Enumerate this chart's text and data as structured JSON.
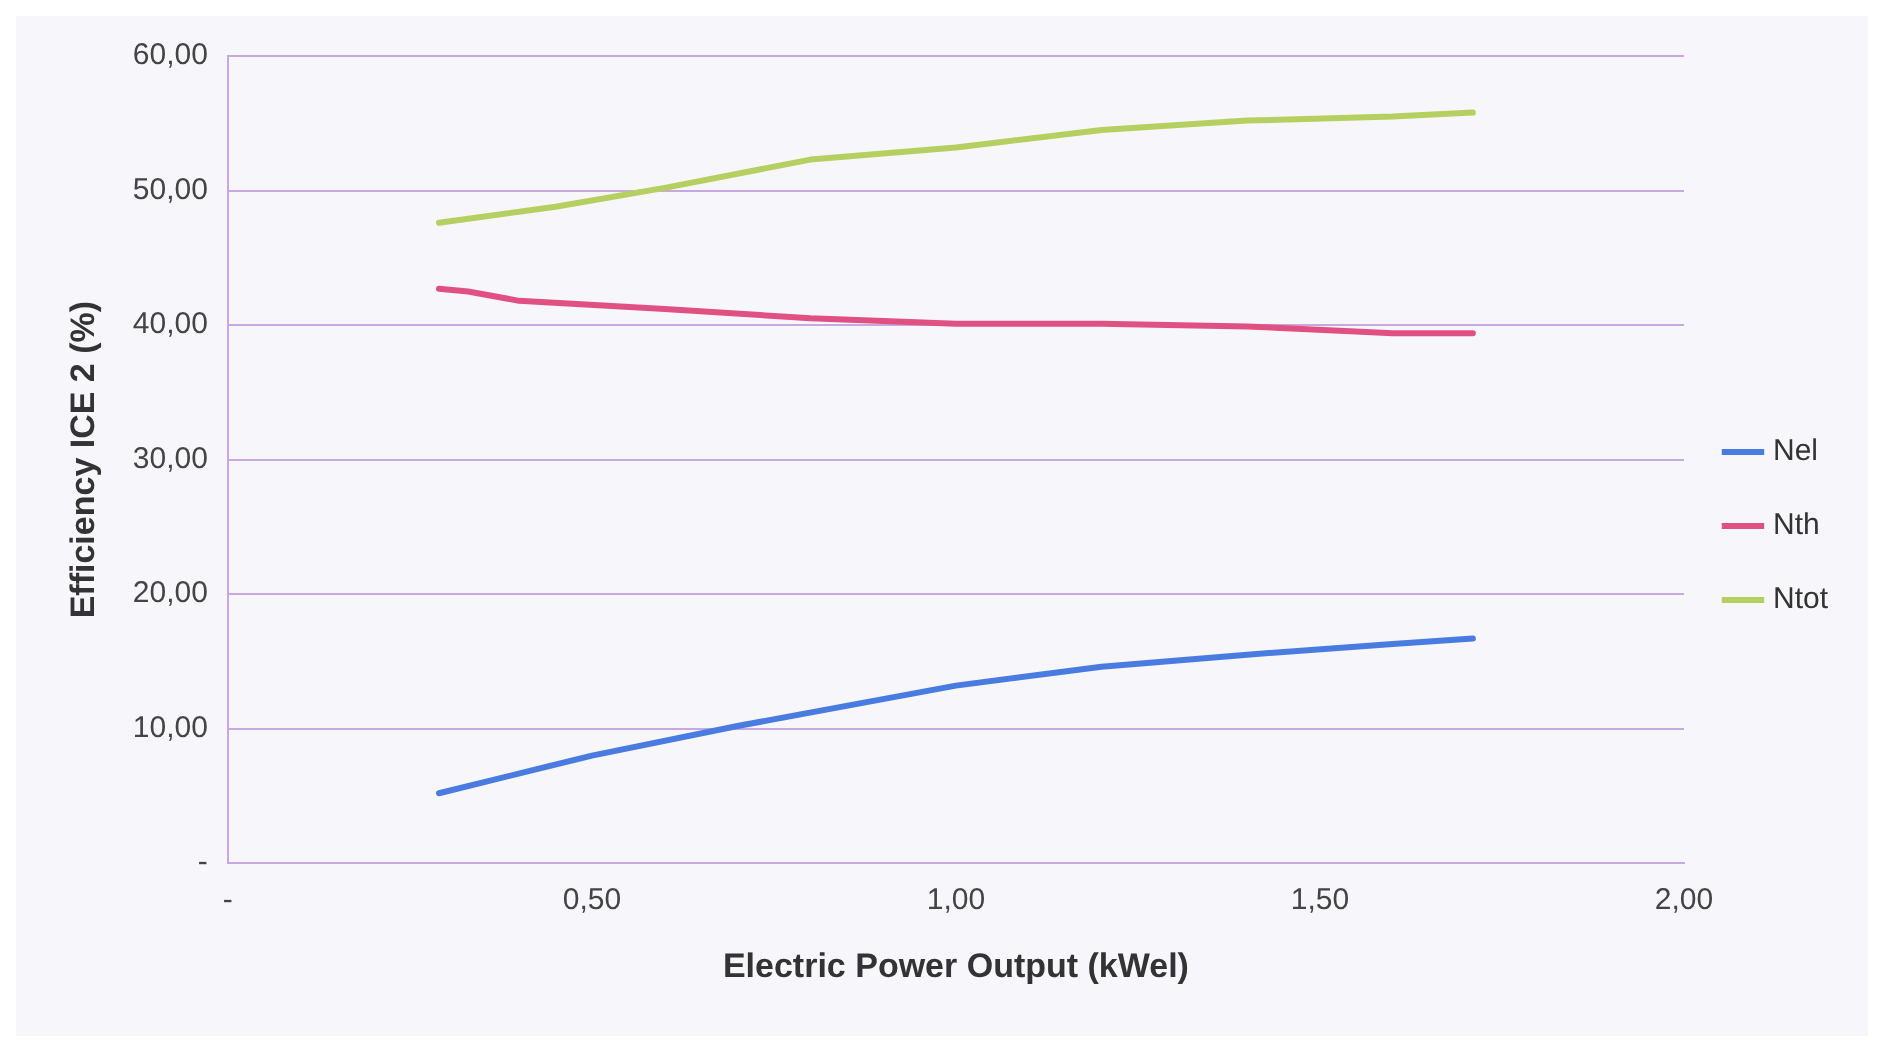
{
  "chart_data": {
    "type": "line",
    "xlabel": "Electric Power Output (kWel)",
    "ylabel": "Efficiency ICE 2 (%)",
    "xlim": [
      0,
      2
    ],
    "ylim": [
      0,
      60
    ],
    "xticks": [
      {
        "value": 0,
        "label": "-"
      },
      {
        "value": 0.5,
        "label": "0,50"
      },
      {
        "value": 1,
        "label": "1,00"
      },
      {
        "value": 1.5,
        "label": "1,50"
      },
      {
        "value": 2,
        "label": "2,00"
      }
    ],
    "yticks": [
      {
        "value": 0,
        "label": "-"
      },
      {
        "value": 10,
        "label": "10,00"
      },
      {
        "value": 20,
        "label": "20,00"
      },
      {
        "value": 30,
        "label": "30,00"
      },
      {
        "value": 40,
        "label": "40,00"
      },
      {
        "value": 50,
        "label": "50,00"
      },
      {
        "value": 60,
        "label": "60,00"
      }
    ],
    "grid": "y",
    "legend": "right",
    "marker": "none",
    "line_style": "solid",
    "series": [
      {
        "name": "Nel",
        "color": "#4a7be0",
        "x": [
          0.29,
          0.5,
          0.7,
          1.0,
          1.2,
          1.4,
          1.6,
          1.71
        ],
        "values": [
          5.2,
          8,
          10.2,
          13.2,
          14.6,
          15.5,
          16.3,
          16.7
        ]
      },
      {
        "name": "Nth",
        "color": "#e05080",
        "x": [
          0.29,
          0.33,
          0.4,
          0.6,
          0.8,
          1.0,
          1.2,
          1.4,
          1.6,
          1.71
        ],
        "values": [
          42.7,
          42.5,
          41.8,
          41.2,
          40.5,
          40.1,
          40.1,
          39.9,
          39.4,
          39.4
        ]
      },
      {
        "name": "Ntot",
        "color": "#b5d060",
        "x": [
          0.29,
          0.45,
          0.6,
          0.8,
          1.0,
          1.2,
          1.4,
          1.6,
          1.71
        ],
        "values": [
          47.6,
          48.8,
          50.2,
          52.3,
          53.2,
          54.5,
          55.2,
          55.5,
          55.8
        ]
      }
    ]
  }
}
